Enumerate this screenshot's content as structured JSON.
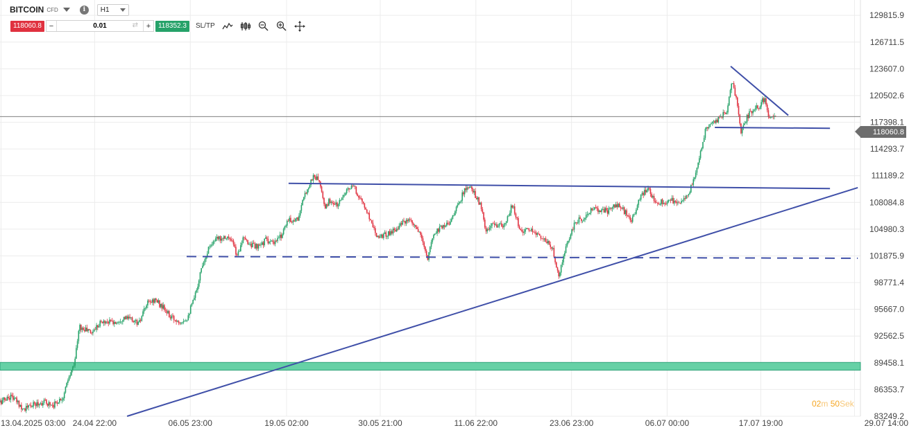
{
  "toolbar": {
    "symbol": "BITCOIN",
    "symbol_type": "CFD",
    "timeframe": "H1",
    "sell_price": "118060.8",
    "quantity": "0.01",
    "buy_price": "118352.3",
    "sltp_label": "SL/TP",
    "minus": "−",
    "plus": "+",
    "info": "i",
    "swap": "⇄"
  },
  "current_price_label": "118060.8",
  "timer": {
    "minutes": "02",
    "minutes_unit": "m",
    "seconds": "50",
    "seconds_unit": "Sek"
  },
  "colors": {
    "up": "#26a269",
    "down": "#e0313f",
    "trendline": "#3f4fa8",
    "zone": "#66d1a6",
    "current_price": "#6d6d6d"
  },
  "chart_data": {
    "type": "candlestick",
    "symbol": "BITCOIN",
    "timeframe": "H1",
    "yticks": [
      "129815.9",
      "126711.5",
      "123607.0",
      "120502.6",
      "117398.1",
      "114293.7",
      "111189.2",
      "108084.8",
      "104980.3",
      "101875.9",
      "98771.4",
      "95667.0",
      "92562.5",
      "89458.1",
      "86353.7",
      "83249.2"
    ],
    "ylim": [
      83249.2,
      131600
    ],
    "xticks": [
      "13.04.2025 03:00",
      "24.04 22:00",
      "06.05 23:00",
      "19.05 02:00",
      "30.05 21:00",
      "11.06 22:00",
      "23.06 23:00",
      "06.07 00:00",
      "17.07 19:00",
      "29.07 14:00"
    ],
    "xlim": [
      "2025-04-13T00:00",
      "2025-07-30T08:00"
    ],
    "current_price": 118060.8,
    "price_path": [
      [
        "2025-04-13T00:00",
        84900
      ],
      [
        "2025-04-14T10:00",
        85600
      ],
      [
        "2025-04-16T00:00",
        84100
      ],
      [
        "2025-04-17T08:00",
        84600
      ],
      [
        "2025-04-18T12:00",
        84900
      ],
      [
        "2025-04-19T18:00",
        84600
      ],
      [
        "2025-04-20T22:00",
        85500
      ],
      [
        "2025-04-21T14:00",
        87400
      ],
      [
        "2025-04-22T04:00",
        88900
      ],
      [
        "2025-04-22T12:00",
        90300
      ],
      [
        "2025-04-23T00:00",
        93700
      ],
      [
        "2025-04-23T12:00",
        93300
      ],
      [
        "2025-04-24T00:00",
        93300
      ],
      [
        "2025-04-24T12:00",
        92900
      ],
      [
        "2025-04-25T12:00",
        94100
      ],
      [
        "2025-04-26T12:00",
        94300
      ],
      [
        "2025-04-27T12:00",
        94100
      ],
      [
        "2025-04-28T12:00",
        94700
      ],
      [
        "2025-04-29T12:00",
        94500
      ],
      [
        "2025-04-30T12:00",
        94000
      ],
      [
        "2025-05-01T12:00",
        96300
      ],
      [
        "2025-05-02T12:00",
        96800
      ],
      [
        "2025-05-03T12:00",
        95900
      ],
      [
        "2025-05-04T12:00",
        94700
      ],
      [
        "2025-05-05T12:00",
        94300
      ],
      [
        "2025-05-06T12:00",
        94600
      ],
      [
        "2025-05-07T12:00",
        97000
      ],
      [
        "2025-05-08T12:00",
        101000
      ],
      [
        "2025-05-09T12:00",
        103300
      ],
      [
        "2025-05-10T12:00",
        103900
      ],
      [
        "2025-05-11T12:00",
        104200
      ],
      [
        "2025-05-12T08:00",
        103300
      ],
      [
        "2025-05-12T20:00",
        101800
      ],
      [
        "2025-05-13T12:00",
        103800
      ],
      [
        "2025-05-14T12:00",
        103300
      ],
      [
        "2025-05-15T12:00",
        102800
      ],
      [
        "2025-05-16T12:00",
        103800
      ],
      [
        "2025-05-17T12:00",
        103200
      ],
      [
        "2025-05-18T12:00",
        104400
      ],
      [
        "2025-05-19T02:00",
        105900
      ],
      [
        "2025-05-20T12:00",
        106200
      ],
      [
        "2025-05-21T12:00",
        109300
      ],
      [
        "2025-05-22T12:00",
        111200
      ],
      [
        "2025-05-23T06:00",
        110500
      ],
      [
        "2025-05-23T20:00",
        107400
      ],
      [
        "2025-05-24T12:00",
        108300
      ],
      [
        "2025-05-25T12:00",
        107700
      ],
      [
        "2025-05-26T12:00",
        109500
      ],
      [
        "2025-05-27T12:00",
        109900
      ],
      [
        "2025-05-28T12:00",
        108300
      ],
      [
        "2025-05-29T12:00",
        106400
      ],
      [
        "2025-05-30T12:00",
        104200
      ],
      [
        "2025-05-31T12:00",
        104300
      ],
      [
        "2025-06-01T12:00",
        104800
      ],
      [
        "2025-06-02T12:00",
        105600
      ],
      [
        "2025-06-03T12:00",
        105900
      ],
      [
        "2025-06-04T12:00",
        105000
      ],
      [
        "2025-06-05T08:00",
        103300
      ],
      [
        "2025-06-05T20:00",
        101300
      ],
      [
        "2025-06-06T12:00",
        104300
      ],
      [
        "2025-06-07T12:00",
        105300
      ],
      [
        "2025-06-08T12:00",
        105700
      ],
      [
        "2025-06-09T12:00",
        107400
      ],
      [
        "2025-06-10T12:00",
        109600
      ],
      [
        "2025-06-11T12:00",
        109600
      ],
      [
        "2025-06-12T12:00",
        107700
      ],
      [
        "2025-06-13T06:00",
        104500
      ],
      [
        "2025-06-13T20:00",
        105400
      ],
      [
        "2025-06-14T12:00",
        105500
      ],
      [
        "2025-06-15T12:00",
        105200
      ],
      [
        "2025-06-16T12:00",
        107800
      ],
      [
        "2025-06-17T12:00",
        104800
      ],
      [
        "2025-06-18T12:00",
        104800
      ],
      [
        "2025-06-19T12:00",
        104600
      ],
      [
        "2025-06-20T12:00",
        103800
      ],
      [
        "2025-06-21T12:00",
        102800
      ],
      [
        "2025-06-22T10:00",
        99600
      ],
      [
        "2025-06-22T20:00",
        101200
      ],
      [
        "2025-06-23T12:00",
        103700
      ],
      [
        "2025-06-24T12:00",
        105800
      ],
      [
        "2025-06-25T12:00",
        106300
      ],
      [
        "2025-06-26T12:00",
        107200
      ],
      [
        "2025-06-27T12:00",
        107300
      ],
      [
        "2025-06-28T12:00",
        107100
      ],
      [
        "2025-06-29T12:00",
        107800
      ],
      [
        "2025-06-30T12:00",
        107200
      ],
      [
        "2025-07-01T12:00",
        105800
      ],
      [
        "2025-07-02T12:00",
        108400
      ],
      [
        "2025-07-03T12:00",
        109800
      ],
      [
        "2025-07-04T12:00",
        108300
      ],
      [
        "2025-07-05T12:00",
        108100
      ],
      [
        "2025-07-06T12:00",
        108300
      ],
      [
        "2025-07-07T12:00",
        108200
      ],
      [
        "2025-07-08T12:00",
        108700
      ],
      [
        "2025-07-09T12:00",
        111000
      ],
      [
        "2025-07-10T08:00",
        114500
      ],
      [
        "2025-07-10T20:00",
        116500
      ],
      [
        "2025-07-11T12:00",
        117500
      ],
      [
        "2025-07-12T12:00",
        117700
      ],
      [
        "2025-07-13T12:00",
        118800
      ],
      [
        "2025-07-14T04:00",
        122600
      ],
      [
        "2025-07-14T16:00",
        120300
      ],
      [
        "2025-07-15T06:00",
        116200
      ],
      [
        "2025-07-15T20:00",
        117600
      ],
      [
        "2025-07-16T12:00",
        118700
      ],
      [
        "2025-07-17T12:00",
        119200
      ],
      [
        "2025-07-18T06:00",
        120200
      ],
      [
        "2025-07-18T20:00",
        117800
      ],
      [
        "2025-07-19T08:00",
        118000
      ],
      [
        "2025-07-19T16:00",
        118060.8
      ]
    ],
    "annotations": [
      {
        "type": "trendline",
        "style": "solid",
        "from": [
          "2025-04-29T00:00",
          83249
        ],
        "to": [
          "2025-07-30T00:00",
          109800
        ]
      },
      {
        "type": "trendline",
        "style": "solid",
        "from": [
          "2025-05-19T08:00",
          110300
        ],
        "to": [
          "2025-07-26T12:00",
          109700
        ]
      },
      {
        "type": "trendline",
        "style": "dashed",
        "from": [
          "2025-05-06T12:00",
          101800
        ],
        "to": [
          "2025-07-30T00:00",
          101600
        ]
      },
      {
        "type": "trendline",
        "style": "solid",
        "from": [
          "2025-07-12T00:00",
          116800
        ],
        "to": [
          "2025-07-26T12:00",
          116700
        ]
      },
      {
        "type": "trendline",
        "style": "solid",
        "from": [
          "2025-07-14T00:00",
          123900
        ],
        "to": [
          "2025-07-21T06:00",
          118200
        ]
      },
      {
        "type": "zone",
        "from": 88600,
        "to": 89500
      }
    ]
  }
}
